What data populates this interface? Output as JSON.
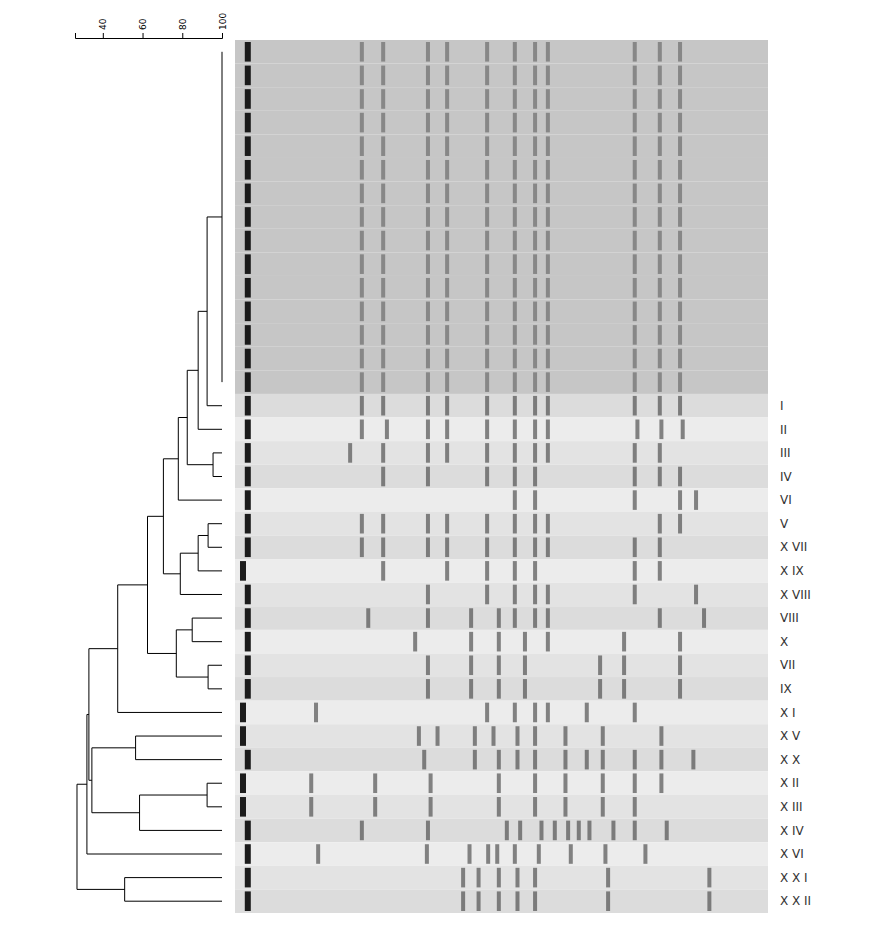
{
  "chart_data": {
    "type": "dendrogram",
    "xlim": [
      26,
      100
    ],
    "xticks": [
      40,
      60,
      80,
      100
    ],
    "band_lim": [
      0,
      100
    ],
    "leaves": [
      null,
      null,
      null,
      null,
      null,
      null,
      null,
      null,
      null,
      null,
      null,
      null,
      null,
      null,
      null,
      "I",
      "II",
      "III",
      "IV",
      "VI",
      "V",
      "X VII",
      "X IX",
      "X VIII",
      "VIII",
      "X",
      "VII",
      "IX",
      "X I",
      "X V",
      "X X",
      "X II",
      "X III",
      "X IV",
      "X VI",
      "X X I",
      "X X II"
    ],
    "tree": {
      "value": 27,
      "children": [
        {
          "value": 32,
          "children": [
            {
              "value": 33,
              "children": [
                {
                  "value": 47.5,
                  "children": [
                    {
                      "value": 62.5,
                      "children": [
                        {
                          "value": 70.5,
                          "children": [
                            {
                              "value": 78,
                              "children": [
                                {
                                  "value": 82.5,
                                  "children": [
                                    {
                                      "value": 88,
                                      "children": [
                                        {
                                          "value": 92.5,
                                          "children": [
                                            {
                                              "value": 100,
                                              "children": [
                                                0,
                                                1,
                                                2,
                                                3,
                                                4,
                                                5,
                                                6,
                                                7,
                                                8,
                                                9,
                                                10,
                                                11,
                                                12,
                                                13,
                                                14
                                              ]
                                            },
                                            15
                                          ]
                                        },
                                        16
                                      ]
                                    },
                                    {
                                      "value": 95.5,
                                      "children": [
                                        17,
                                        18
                                      ]
                                    }
                                  ]
                                },
                                19
                              ]
                            },
                            {
                              "value": 79,
                              "children": [
                                {
                                  "value": 88,
                                  "children": [
                                    {
                                      "value": 93,
                                      "children": [
                                        20,
                                        21
                                      ]
                                    },
                                    22
                                  ]
                                },
                                23
                              ]
                            }
                          ]
                        },
                        {
                          "value": 77,
                          "children": [
                            {
                              "value": 85,
                              "children": [
                                24,
                                25
                              ]
                            },
                            {
                              "value": 93,
                              "children": [
                                26,
                                27
                              ]
                            }
                          ]
                        }
                      ]
                    },
                    28
                  ]
                },
                {
                  "value": 34.5,
                  "children": [
                    {
                      "value": 56.5,
                      "children": [
                        29,
                        30
                      ]
                    },
                    {
                      "value": 58.5,
                      "children": [
                        {
                          "value": 92.5,
                          "children": [
                            31,
                            32
                          ]
                        },
                        33
                      ]
                    }
                  ]
                }
              ]
            },
            34
          ]
        },
        {
          "value": 51,
          "children": [
            35,
            36
          ]
        }
      ]
    },
    "lanes": [
      [
        2.4,
        23.8,
        27.8,
        36.2,
        39.8,
        47.3,
        52.5,
        56.3,
        58.7,
        75,
        79.7,
        83.5
      ],
      [
        2.4,
        23.8,
        27.8,
        36.2,
        39.8,
        47.3,
        52.5,
        56.3,
        58.7,
        75,
        79.7,
        83.5
      ],
      [
        2.4,
        23.8,
        27.8,
        36.2,
        39.8,
        47.3,
        52.5,
        56.3,
        58.7,
        75,
        79.7,
        83.5
      ],
      [
        2.4,
        23.8,
        27.8,
        36.2,
        39.8,
        47.3,
        52.5,
        56.3,
        58.7,
        75,
        79.7,
        83.5
      ],
      [
        2.4,
        23.8,
        27.8,
        36.2,
        39.8,
        47.3,
        52.5,
        56.3,
        58.7,
        75,
        79.7,
        83.5
      ],
      [
        2.4,
        23.8,
        27.8,
        36.2,
        39.8,
        47.3,
        52.5,
        56.3,
        58.7,
        75,
        79.7,
        83.5
      ],
      [
        2.4,
        23.8,
        27.8,
        36.2,
        39.8,
        47.3,
        52.5,
        56.3,
        58.7,
        75,
        79.7,
        83.5
      ],
      [
        2.4,
        23.8,
        27.8,
        36.2,
        39.8,
        47.3,
        52.5,
        56.3,
        58.7,
        75,
        79.7,
        83.5
      ],
      [
        2.4,
        23.8,
        27.8,
        36.2,
        39.8,
        47.3,
        52.5,
        56.3,
        58.7,
        75,
        79.7,
        83.5
      ],
      [
        2.4,
        23.8,
        27.8,
        36.2,
        39.8,
        47.3,
        52.5,
        56.3,
        58.7,
        75,
        79.7,
        83.5
      ],
      [
        2.4,
        23.8,
        27.8,
        36.2,
        39.8,
        47.3,
        52.5,
        56.3,
        58.7,
        75,
        79.7,
        83.5
      ],
      [
        2.4,
        23.8,
        27.8,
        36.2,
        39.8,
        47.3,
        52.5,
        56.3,
        58.7,
        75,
        79.7,
        83.5
      ],
      [
        2.4,
        23.8,
        27.8,
        36.2,
        39.8,
        47.3,
        52.5,
        56.3,
        58.7,
        75,
        79.7,
        83.5
      ],
      [
        2.4,
        23.8,
        27.8,
        36.2,
        39.8,
        47.3,
        52.5,
        56.3,
        58.7,
        75,
        79.7,
        83.5
      ],
      [
        2.4,
        23.8,
        27.8,
        36.2,
        39.8,
        47.3,
        52.5,
        56.3,
        58.7,
        75,
        79.7,
        83.5
      ],
      [
        2.4,
        23.8,
        27.8,
        36.2,
        39.8,
        47.3,
        52.5,
        56.3,
        58.7,
        75,
        79.7,
        83.5
      ],
      [
        2.4,
        23.8,
        28.5,
        36.2,
        39.8,
        47.3,
        52.5,
        56.3,
        58.7,
        75.5,
        80,
        84
      ],
      [
        2.4,
        21.6,
        27.8,
        36.2,
        39.8,
        47.3,
        52.5,
        56.3,
        58.7,
        75,
        79.7
      ],
      [
        2.4,
        27.8,
        36.2,
        47.3,
        52.5,
        56.3,
        75,
        79.7,
        83.5
      ],
      [
        2.4,
        52.5,
        56.3,
        75,
        83.5,
        86.5
      ],
      [
        2.4,
        23.8,
        27.8,
        36.2,
        39.8,
        47.3,
        52.5,
        56.3,
        58.7,
        79.7,
        83.5
      ],
      [
        2.4,
        23.8,
        27.8,
        36.2,
        39.8,
        47.3,
        52.5,
        56.3,
        58.7,
        75,
        79.7
      ],
      [
        1.5,
        27.8,
        39.8,
        47.3,
        52.5,
        56.3,
        75,
        79.7
      ],
      [
        2.4,
        36.2,
        47.3,
        52.5,
        56.3,
        58.7,
        75,
        86.5
      ],
      [
        2.4,
        25,
        36.2,
        44.3,
        49.5,
        52.5,
        56.3,
        58.7,
        79.7,
        88
      ],
      [
        2.4,
        33.8,
        44.3,
        49.5,
        54.4,
        58.7,
        73,
        83.5
      ],
      [
        2.4,
        36.2,
        44.3,
        49.5,
        54.4,
        68.5,
        73,
        83.5
      ],
      [
        2.4,
        36.2,
        44.3,
        49.5,
        54.4,
        68.5,
        73,
        83.5
      ],
      [
        1.5,
        15.2,
        47.3,
        52.5,
        56.3,
        58.7,
        66,
        75
      ],
      [
        1.5,
        34.5,
        38,
        45,
        48.5,
        53,
        56.3,
        62,
        69,
        80
      ],
      [
        2.4,
        35.5,
        45,
        49.5,
        53,
        56.3,
        62,
        66,
        69,
        75,
        80,
        86
      ],
      [
        1.5,
        14.3,
        26.3,
        36.7,
        49.5,
        56.3,
        62,
        69,
        75,
        80
      ],
      [
        1.5,
        14.3,
        26.3,
        36.7,
        49.5,
        56.3,
        62,
        69,
        75
      ],
      [
        2.4,
        23.8,
        36.2,
        51,
        53.5,
        57.5,
        60,
        62.5,
        64.5,
        66.5,
        71,
        75,
        81
      ],
      [
        2.4,
        15.6,
        36,
        44,
        47.5,
        49.2,
        52.5,
        57,
        63,
        69.5,
        77
      ],
      [
        2.4,
        42.8,
        45.7,
        49.5,
        53,
        56.3,
        70,
        89
      ],
      [
        2.4,
        42.8,
        45.7,
        49.5,
        53,
        56.3,
        70,
        89
      ]
    ]
  }
}
